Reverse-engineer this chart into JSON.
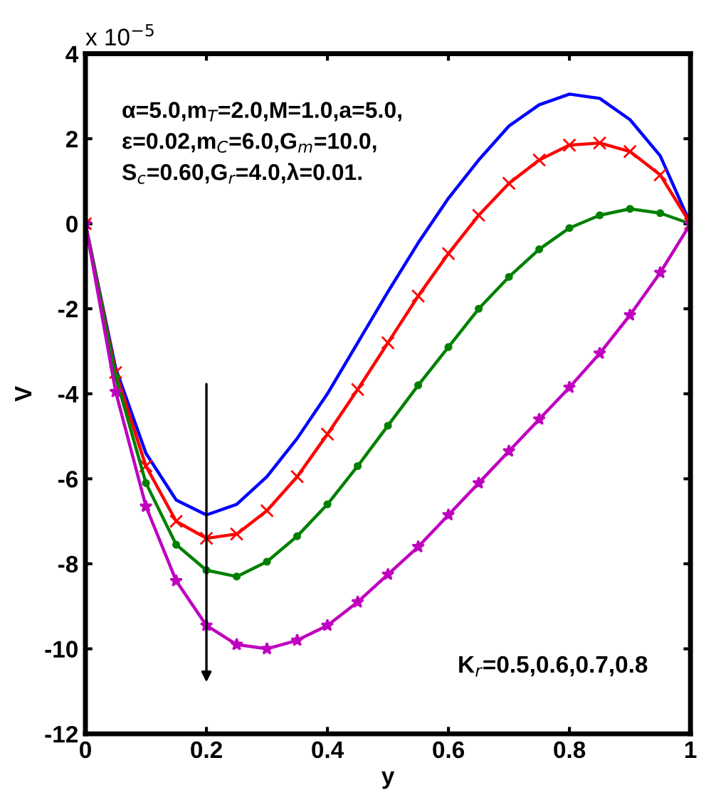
{
  "chart_data": {
    "type": "line",
    "xlabel": "y",
    "ylabel": "V",
    "x": [
      0,
      0.05,
      0.1,
      0.15,
      0.2,
      0.25,
      0.3,
      0.35,
      0.4,
      0.45,
      0.5,
      0.55,
      0.6,
      0.65,
      0.7,
      0.75,
      0.8,
      0.85,
      0.9,
      0.95,
      1
    ],
    "series": [
      {
        "color": "#0000ff",
        "marker": "none",
        "values": [
          0,
          -3.4,
          -5.4,
          -6.5,
          -6.85,
          -6.6,
          -5.95,
          -5.05,
          -4.0,
          -2.8,
          -1.6,
          -0.45,
          0.6,
          1.5,
          2.3,
          2.8,
          3.05,
          2.95,
          2.45,
          1.6,
          0
        ]
      },
      {
        "color": "#ff0000",
        "marker": "cross",
        "values": [
          0,
          -3.5,
          -5.7,
          -7.0,
          -7.4,
          -7.3,
          -6.75,
          -5.95,
          -4.95,
          -3.9,
          -2.8,
          -1.7,
          -0.7,
          0.2,
          0.95,
          1.5,
          1.85,
          1.9,
          1.7,
          1.15,
          0
        ]
      },
      {
        "color": "#008000",
        "marker": "circle",
        "values": [
          0,
          -3.6,
          -6.1,
          -7.55,
          -8.15,
          -8.3,
          -7.95,
          -7.35,
          -6.6,
          -5.7,
          -4.75,
          -3.8,
          -2.9,
          -2.0,
          -1.25,
          -0.6,
          -0.1,
          0.2,
          0.35,
          0.25,
          0
        ]
      },
      {
        "color": "#bf00bf",
        "marker": "star",
        "values": [
          0,
          -3.95,
          -6.65,
          -8.4,
          -9.45,
          -9.9,
          -10.0,
          -9.8,
          -9.45,
          -8.9,
          -8.25,
          -7.6,
          -6.85,
          -6.1,
          -5.35,
          -4.6,
          -3.85,
          -3.05,
          -2.15,
          -1.15,
          0
        ]
      }
    ],
    "xlim": [
      0,
      1
    ],
    "xticks": [
      0,
      0.2,
      0.4,
      0.6,
      0.8,
      1
    ],
    "ylim": [
      -12,
      4
    ],
    "yticks": [
      -12,
      -10,
      -8,
      -6,
      -4,
      -2,
      0,
      2,
      4
    ],
    "grid": false,
    "legend": false,
    "line_style": "solid",
    "annotations": [
      "x 10$^{−5}$",
      "α=5.0,m$_{T}$=2.0,M=1.0,a=5.0,\nε=0.02,m$_{C}$=6.0,G$_{m}$=10.0,\nS$_{c}$=0.60,G$_{r}$=4.0,λ=0.01.",
      "K$_{r}$=0.5,0.6,0.7,0.8"
    ]
  }
}
